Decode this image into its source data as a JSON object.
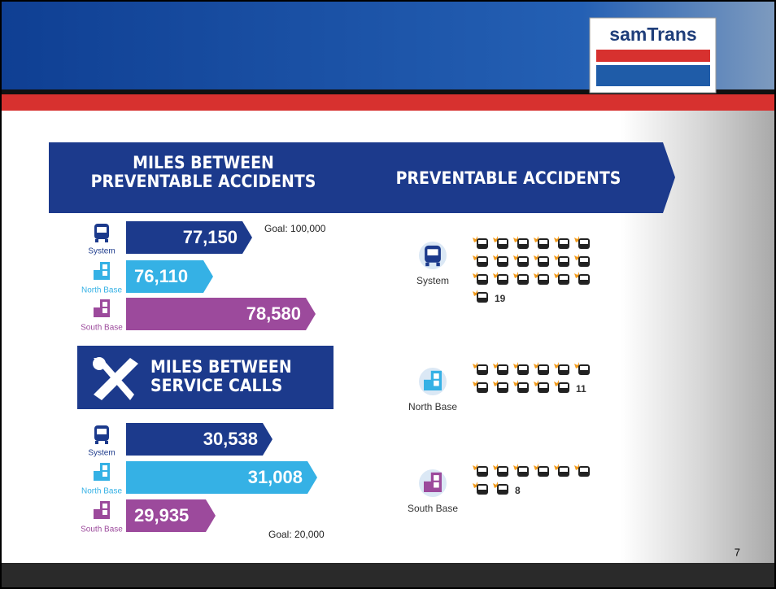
{
  "logo": "samTrans",
  "miles_between_accidents": {
    "title_lines": [
      "MILES BETWEEN",
      "PREVENTABLE ACCIDENTS"
    ],
    "goal": "Goal: 100,000",
    "rows": [
      {
        "label": "System",
        "value": "77,150"
      },
      {
        "label": "North Base",
        "value": "76,110"
      },
      {
        "label": "South Base",
        "value": "78,580"
      }
    ]
  },
  "preventable_accidents": {
    "title": "PREVENTABLE ACCIDENTS",
    "rows": [
      {
        "label": "System",
        "count": 19
      },
      {
        "label": "North Base",
        "count": 11
      },
      {
        "label": "South Base",
        "count": 8
      }
    ]
  },
  "miles_between_service_calls": {
    "title_lines": [
      "MILES BETWEEN",
      "SERVICE CALLS"
    ],
    "goal": "Goal: 20,000",
    "rows": [
      {
        "label": "System",
        "value": "30,538"
      },
      {
        "label": "North Base",
        "value": "31,008"
      },
      {
        "label": "South Base",
        "value": "29,935"
      }
    ]
  },
  "page_number": 7
}
